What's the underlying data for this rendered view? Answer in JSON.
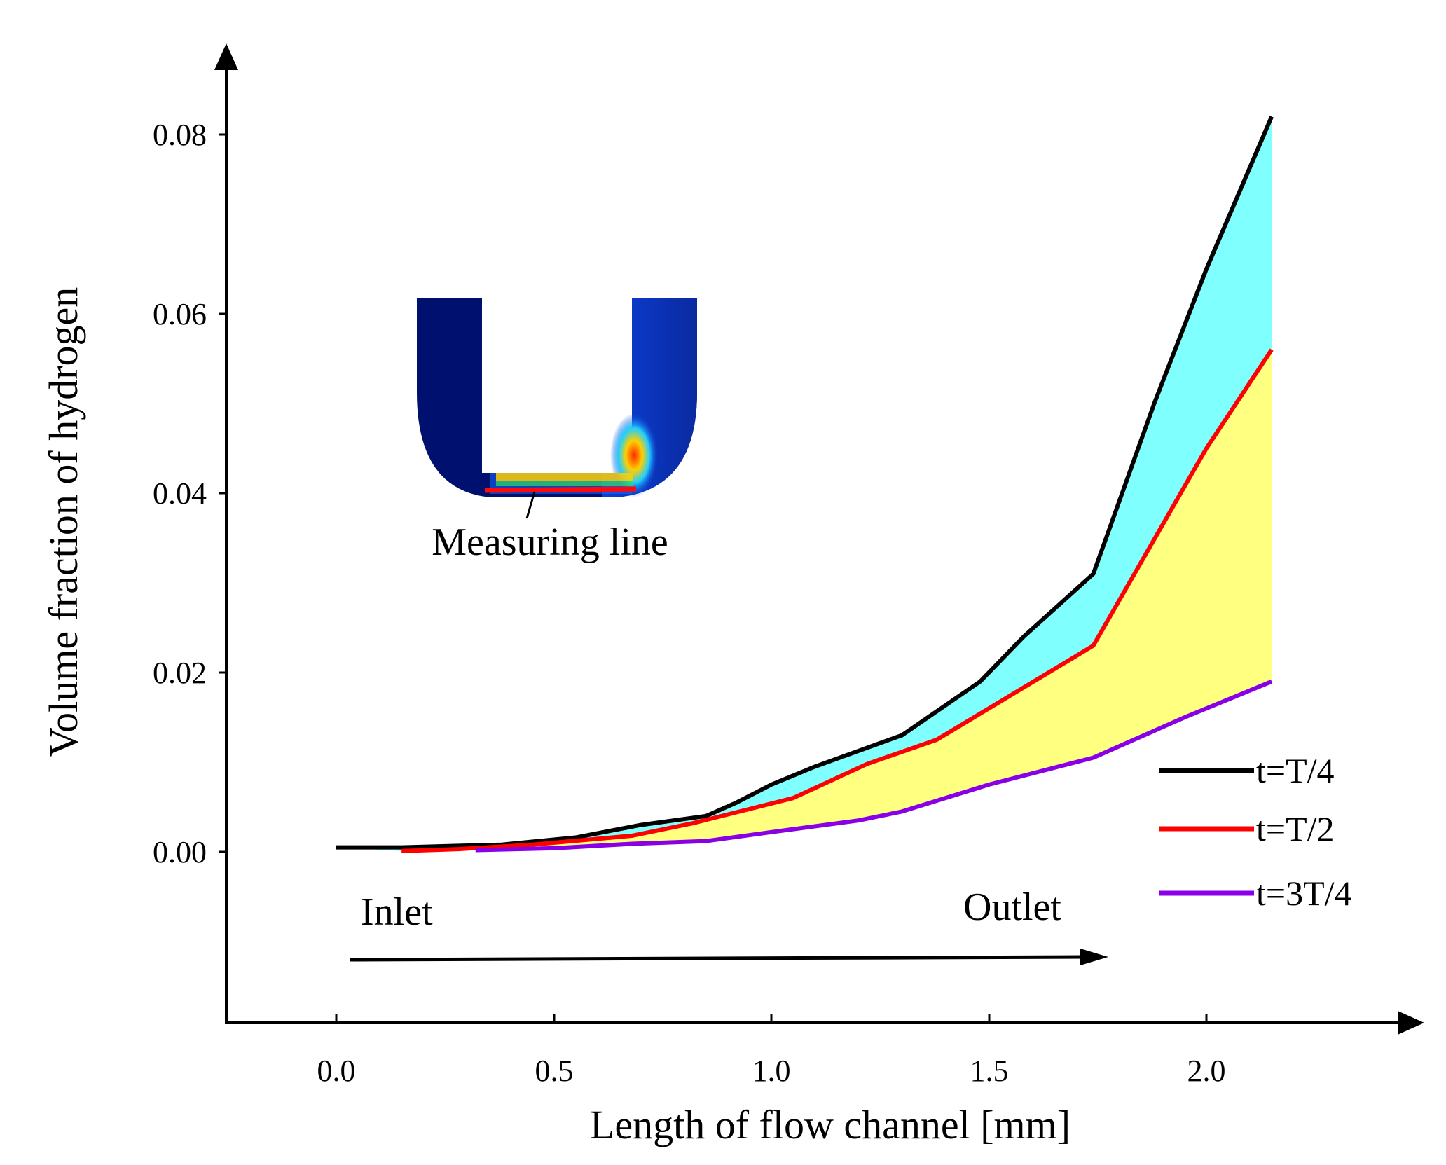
{
  "chart_data": {
    "type": "line",
    "title": "",
    "xlabel": "Length of flow channel [mm]",
    "ylabel": "Volume fraction of hydrogen",
    "xlim": [
      -0.25,
      2.55
    ],
    "ylim": [
      -0.019,
      0.089
    ],
    "xticks": [
      0.0,
      0.5,
      1.0,
      1.5,
      2.0
    ],
    "xtick_labels": [
      "0.0",
      "0.5",
      "1.0",
      "1.5",
      "2.0"
    ],
    "yticks": [
      0.0,
      0.02,
      0.04,
      0.06,
      0.08
    ],
    "ytick_labels": [
      "0.00",
      "0.02",
      "0.04",
      "0.06",
      "0.08"
    ],
    "legend_position": "right",
    "series": [
      {
        "name": "t=T/4",
        "color": "#000000",
        "x": [
          0.0,
          0.15,
          0.38,
          0.55,
          0.7,
          0.85,
          0.92,
          1.0,
          1.1,
          1.3,
          1.48,
          1.58,
          1.74,
          1.88,
          2.0,
          2.15
        ],
        "y": [
          0.0005,
          0.0005,
          0.0008,
          0.0016,
          0.003,
          0.004,
          0.0055,
          0.0075,
          0.0095,
          0.013,
          0.019,
          0.024,
          0.031,
          0.05,
          0.065,
          0.082
        ]
      },
      {
        "name": "t=T/2",
        "color": "#ff0000",
        "x": [
          0.15,
          0.28,
          0.45,
          0.68,
          0.82,
          1.05,
          1.22,
          1.38,
          1.5,
          1.74,
          2.0,
          2.15
        ],
        "y": [
          0.0001,
          0.0003,
          0.0008,
          0.0018,
          0.0032,
          0.006,
          0.0098,
          0.0125,
          0.016,
          0.023,
          0.045,
          0.056
        ]
      },
      {
        "name": "t=3T/4",
        "color": "#8a00e6",
        "x": [
          0.32,
          0.5,
          0.68,
          0.85,
          1.0,
          1.2,
          1.3,
          1.5,
          1.74,
          1.95,
          2.15
        ],
        "y": [
          0.0002,
          0.0004,
          0.0009,
          0.0012,
          0.0022,
          0.0035,
          0.0045,
          0.0075,
          0.0105,
          0.015,
          0.019
        ]
      }
    ],
    "fills": [
      {
        "between": [
          "t=T/4",
          "t=T/2"
        ],
        "color": "#80ffff"
      },
      {
        "between": [
          "t=T/2",
          "t=3T/4"
        ],
        "color": "#ffff80"
      }
    ],
    "annotations": {
      "inlet": "Inlet",
      "outlet": "Outlet",
      "measuring_line": "Measuring line"
    }
  }
}
